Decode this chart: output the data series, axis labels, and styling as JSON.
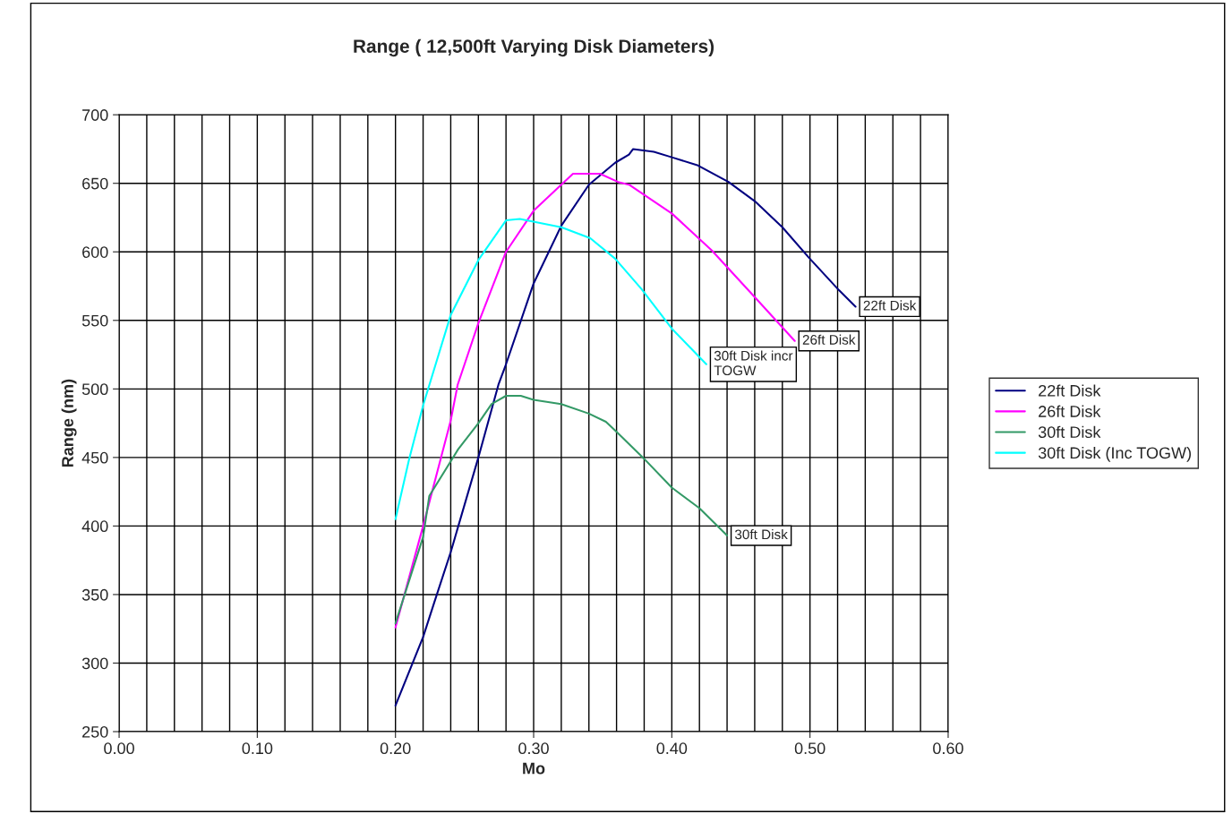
{
  "chart_data": {
    "type": "line",
    "title": "Range ( 12,500ft Varying Disk Diameters)",
    "xlabel": "Mo",
    "ylabel": "Range (nm)",
    "xlim": [
      0,
      0.6
    ],
    "xticks": [
      {
        "value": 0,
        "label": "0.00"
      },
      {
        "value": 0.1,
        "label": "0.10"
      },
      {
        "value": 0.2,
        "label": "0.20"
      },
      {
        "value": 0.3,
        "label": "0.30"
      },
      {
        "value": 0.4,
        "label": "0.40"
      },
      {
        "value": 0.5,
        "label": "0.50"
      },
      {
        "value": 0.6,
        "label": "0.60"
      }
    ],
    "ylim": [
      250,
      700
    ],
    "yticks": [
      250,
      300,
      350,
      400,
      450,
      500,
      550,
      600,
      650,
      700
    ],
    "grid": true,
    "legend": "right",
    "marker": "none",
    "line_style": "solid",
    "series": [
      {
        "name": "22ft Disk",
        "color": "#000080",
        "x": [
          0.2,
          0.22,
          0.228,
          0.24,
          0.26,
          0.2745,
          0.28,
          0.3,
          0.32,
          0.34,
          0.359,
          0.369,
          0.372,
          0.387,
          0.4,
          0.419,
          0.441,
          0.46,
          0.48,
          0.499,
          0.521,
          0.533
        ],
        "values": [
          269,
          319,
          344,
          381,
          450,
          503,
          518,
          577,
          619,
          649,
          665,
          671,
          675,
          673,
          669,
          663,
          651,
          637,
          618,
          596,
          572,
          560
        ]
      },
      {
        "name": "26ft Disk",
        "color": "#ff00ff",
        "x": [
          0.2,
          0.22,
          0.24,
          0.245,
          0.26,
          0.28,
          0.3,
          0.32,
          0.3285,
          0.348,
          0.361,
          0.369,
          0.4,
          0.429,
          0.46,
          0.489
        ],
        "values": [
          326,
          400,
          477,
          503,
          548,
          600,
          630,
          649,
          657,
          657,
          651,
          649,
          628,
          601,
          567,
          535
        ]
      },
      {
        "name": "30ft Disk",
        "color": "#339966",
        "x": [
          0.2,
          0.22,
          0.2245,
          0.2454,
          0.26,
          0.2696,
          0.28,
          0.2907,
          0.3,
          0.32,
          0.34,
          0.3523,
          0.3597,
          0.38,
          0.4,
          0.42,
          0.44
        ],
        "values": [
          329,
          392,
          422,
          456,
          475,
          489,
          495,
          495,
          492,
          489,
          482,
          476,
          469,
          449,
          428,
          413,
          393
        ]
      },
      {
        "name": "30ft Disk (Inc TOGW)",
        "color": "#00ffff",
        "x": [
          0.2,
          0.2097,
          0.22,
          0.24,
          0.26,
          0.28,
          0.29,
          0.32,
          0.341,
          0.359,
          0.378,
          0.4,
          0.425
        ],
        "values": [
          405,
          448,
          488,
          554,
          594,
          623,
          624,
          618,
          610,
          595,
          573,
          544,
          518
        ]
      }
    ],
    "annotations": [
      {
        "text": "22ft Disk",
        "x": 0.533,
        "y": 560
      },
      {
        "text": "26ft Disk",
        "x": 0.489,
        "y": 535
      },
      {
        "text": "30ft Disk incr\nTOGW",
        "x": 0.425,
        "y": 518
      },
      {
        "text": "30ft Disk",
        "x": 0.44,
        "y": 393
      }
    ]
  }
}
